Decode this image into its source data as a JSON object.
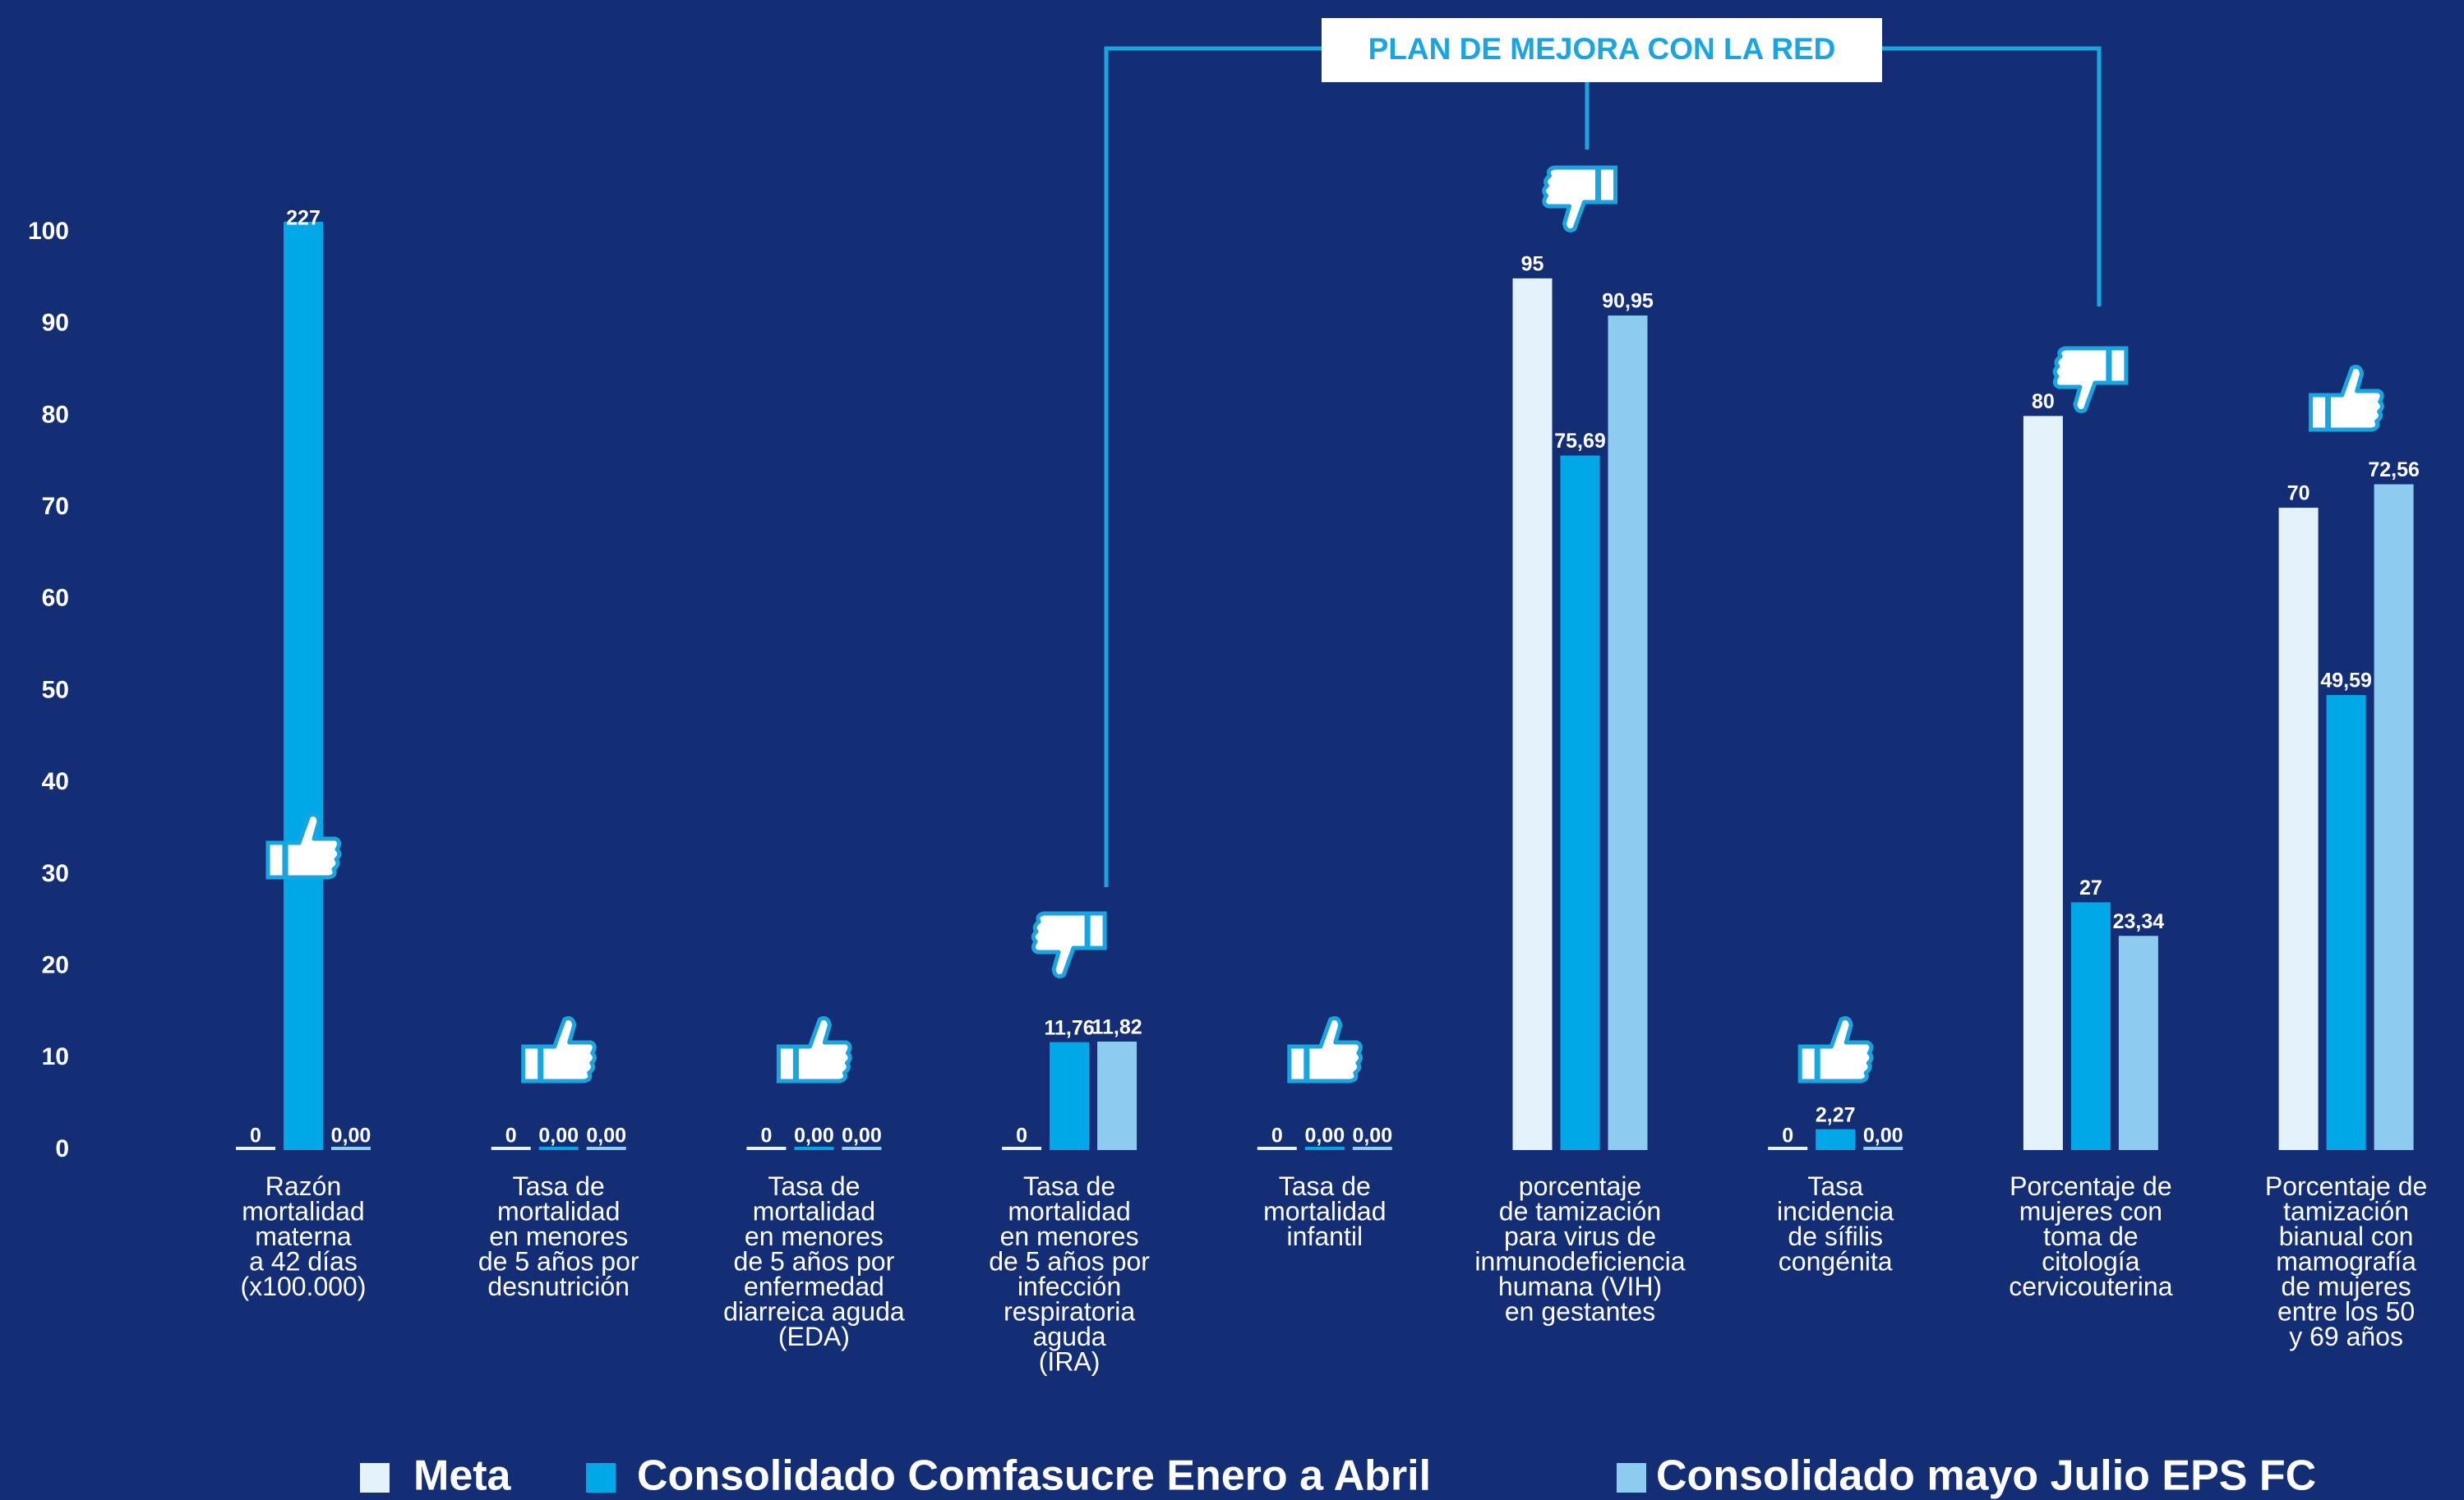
{
  "chart_data": {
    "type": "bar",
    "annotation": "PLAN DE MEJORA CON LA RED",
    "categories": [
      "Razón\nmortalidad\nmaterna\na 42 días\n(x100.000)",
      "Tasa de\nmortalidad\nen menores\nde 5 años por\ndesnutrición",
      "Tasa de\nmortalidad\nen menores\nde 5 años por\nenfermedad\ndiarreica aguda\n(EDA)",
      "Tasa de\nmortalidad\nen menores\nde 5 años por\ninfección\nrespiratoria\naguda\n(IRA)",
      "Tasa de\nmortalidad\ninfantil",
      "porcentaje\nde tamización\npara virus de\ninmunodeficiencia\nhumana (VIH)\nen gestantes",
      "Tasa\nincidencia\nde sífilis\ncongénita",
      "Porcentaje de\nmujeres con\ntoma de\ncitología\ncervicouterina",
      "Porcentaje de\ntamización\nbianual con\nmamografía\nde mujeres\nentre los 50\ny 69 años"
    ],
    "indicators": [
      "up",
      "up",
      "up",
      "down",
      "up",
      "down",
      "up",
      "down",
      "up"
    ],
    "series": [
      {
        "name": "Meta",
        "color": "#e4f2fb",
        "values": [
          0,
          0,
          0,
          0,
          0,
          95,
          0,
          80,
          70
        ],
        "value_labels": [
          "0",
          "0",
          "0",
          "0",
          "0",
          "95",
          "0",
          "80",
          "70"
        ]
      },
      {
        "name": "Consolidado Comfasucre Enero a Abril",
        "color": "#00a8e8",
        "values": [
          227,
          0,
          0,
          11.76,
          0,
          75.69,
          2.27,
          27,
          49.59
        ],
        "value_labels": [
          "227",
          "0,00",
          "0,00",
          "11,76",
          "0,00",
          "75,69",
          "2,27",
          "27",
          "49,59"
        ]
      },
      {
        "name": "Consolidado mayo Julio EPS FC",
        "color": "#8ecbf1",
        "values": [
          0,
          0,
          0,
          11.82,
          0,
          90.95,
          0,
          23.34,
          72.56
        ],
        "value_labels": [
          "0,00",
          "0,00",
          "0,00",
          "11,82",
          "0,00",
          "90,95",
          "0,00",
          "23,34",
          "72,56"
        ]
      }
    ],
    "ylim": [
      0,
      100
    ],
    "yticks": [
      0,
      10,
      20,
      30,
      40,
      50,
      60,
      70,
      80,
      90,
      100
    ],
    "grid": false,
    "legend": "bottom"
  }
}
